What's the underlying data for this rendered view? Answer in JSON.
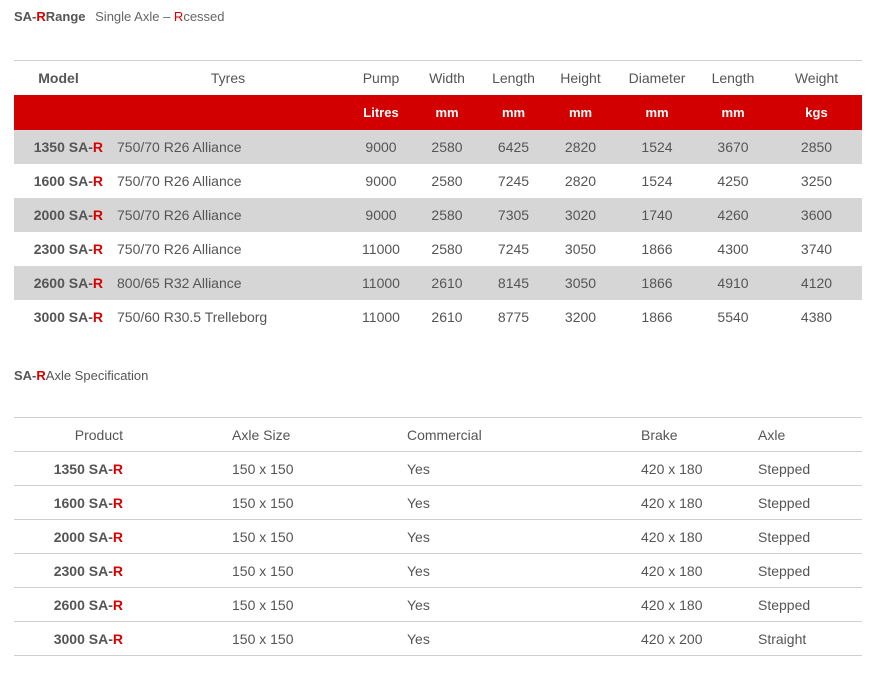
{
  "range_title": {
    "prefix": "SA-",
    "prefix_red": "R",
    "suffix": "Range",
    "sub_a": "Single Axle – ",
    "sub_red": "R",
    "sub_b": "cessed"
  },
  "range_table": {
    "headers": [
      "Model",
      "Tyres",
      "Pump",
      "Width",
      "Length",
      "Height",
      "Diameter",
      "Length",
      "Weight"
    ],
    "units": [
      "",
      "",
      "Litres",
      "mm",
      "mm",
      "mm",
      "mm",
      "mm",
      "kgs"
    ],
    "rows": [
      {
        "model_num": "1350 SA-",
        "model_r": "R",
        "tyres": "750/70 R26 Alliance",
        "pump": "9000",
        "width": "2580",
        "length": "6425",
        "height": "2820",
        "diameter": "1524",
        "length2": "3670",
        "weight": "2850"
      },
      {
        "model_num": "1600 SA-",
        "model_r": "R",
        "tyres": "750/70 R26 Alliance",
        "pump": "9000",
        "width": "2580",
        "length": "7245",
        "height": "2820",
        "diameter": "1524",
        "length2": "4250",
        "weight": "3250"
      },
      {
        "model_num": "2000 SA-",
        "model_r": "R",
        "tyres": "750/70 R26 Alliance",
        "pump": "9000",
        "width": "2580",
        "length": "7305",
        "height": "3020",
        "diameter": "1740",
        "length2": "4260",
        "weight": "3600"
      },
      {
        "model_num": "2300 SA-",
        "model_r": "R",
        "tyres": "750/70 R26 Alliance",
        "pump": "11000",
        "width": "2580",
        "length": "7245",
        "height": "3050",
        "diameter": "1866",
        "length2": "4300",
        "weight": "3740"
      },
      {
        "model_num": "2600 SA-",
        "model_r": "R",
        "tyres": "800/65 R32 Alliance",
        "pump": "11000",
        "width": "2610",
        "length": "8145",
        "height": "3050",
        "diameter": "1866",
        "length2": "4910",
        "weight": "4120"
      },
      {
        "model_num": "3000 SA-",
        "model_r": "R",
        "tyres": "750/60 R30.5 Trelleborg",
        "pump": "11000",
        "width": "2610",
        "length": "8775",
        "height": "3200",
        "diameter": "1866",
        "length2": "5540",
        "weight": "4380"
      }
    ]
  },
  "axle_title": {
    "prefix": "SA-",
    "prefix_red": "R",
    "suffix": "Axle Specification"
  },
  "axle_table": {
    "headers": [
      "Product",
      "Axle Size",
      "Commercial",
      "Brake",
      "Axle"
    ],
    "rows": [
      {
        "prod_num": "1350 SA-",
        "prod_r": "R",
        "axle_size": "150 x 150",
        "commercial": "Yes",
        "brake": "420 x 180",
        "axle": "Stepped"
      },
      {
        "prod_num": "1600 SA-",
        "prod_r": "R",
        "axle_size": "150 x 150",
        "commercial": "Yes",
        "brake": "420 x 180",
        "axle": "Stepped"
      },
      {
        "prod_num": "2000 SA-",
        "prod_r": "R",
        "axle_size": "150 x 150",
        "commercial": "Yes",
        "brake": "420 x 180",
        "axle": "Stepped"
      },
      {
        "prod_num": "2300 SA-",
        "prod_r": "R",
        "axle_size": "150 x 150",
        "commercial": "Yes",
        "brake": "420 x 180",
        "axle": "Stepped"
      },
      {
        "prod_num": "2600 SA-",
        "prod_r": "R",
        "axle_size": "150 x 150",
        "commercial": "Yes",
        "brake": "420 x 180",
        "axle": "Stepped"
      },
      {
        "prod_num": "3000 SA-",
        "prod_r": "R",
        "axle_size": "150 x 150",
        "commercial": "Yes",
        "brake": "420 x 200",
        "axle": "Straight"
      }
    ]
  },
  "colors": {
    "accent_red": "#d30000",
    "row_shade": "#d6d6d6",
    "text": "#555555"
  }
}
